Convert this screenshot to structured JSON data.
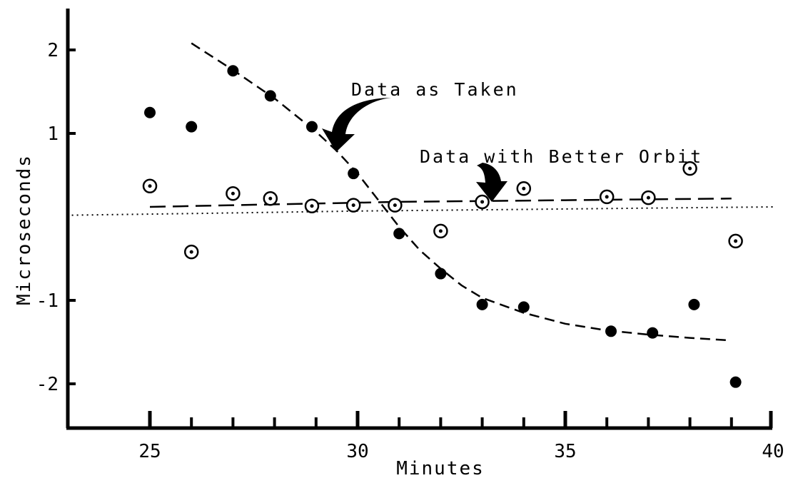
{
  "chart_data": {
    "type": "scatter",
    "xlabel": "Minutes",
    "ylabel": "Microseconds",
    "xlim": [
      23,
      40
    ],
    "ylim": [
      -2.5,
      2.5
    ],
    "x_ticks": [
      25,
      30,
      35,
      40
    ],
    "x_tick_labels": [
      "25",
      "30",
      "35",
      "40"
    ],
    "y_ticks": [
      2,
      1,
      -1,
      -2
    ],
    "y_tick_labels": [
      "2",
      "1",
      "-1",
      "-2"
    ],
    "grid": false,
    "annotations": [
      {
        "text": "Data as Taken"
      },
      {
        "text": "Data with Better Orbit"
      }
    ],
    "series": [
      {
        "marker": "filled-circle",
        "points": [
          [
            25,
            1.25
          ],
          [
            26,
            1.08
          ],
          [
            27,
            1.75
          ],
          [
            27.9,
            1.45
          ],
          [
            28.9,
            1.08
          ],
          [
            29.9,
            0.52
          ],
          [
            31,
            -0.2
          ],
          [
            32,
            -0.68
          ],
          [
            33,
            -1.05
          ],
          [
            34,
            -1.08
          ],
          [
            36.1,
            -1.37
          ],
          [
            37.1,
            -1.39
          ],
          [
            38.1,
            -1.05
          ],
          [
            39.1,
            -1.98
          ]
        ]
      },
      {
        "marker": "circle-dot",
        "points": [
          [
            25,
            0.37
          ],
          [
            26,
            -0.42
          ],
          [
            27,
            0.28
          ],
          [
            27.9,
            0.22
          ],
          [
            28.9,
            0.13
          ],
          [
            29.9,
            0.14
          ],
          [
            30.9,
            0.14
          ],
          [
            32,
            -0.17
          ],
          [
            33,
            0.18
          ],
          [
            34,
            0.34
          ],
          [
            36,
            0.24
          ],
          [
            37,
            0.23
          ],
          [
            38,
            0.58
          ],
          [
            39.1,
            -0.29
          ]
        ]
      }
    ],
    "curves": [
      {
        "style": "dashed",
        "points": [
          [
            26,
            2.08
          ],
          [
            27,
            1.76
          ],
          [
            28,
            1.42
          ],
          [
            29,
            1.02
          ],
          [
            29.5,
            0.79
          ],
          [
            30,
            0.52
          ],
          [
            30.5,
            0.2
          ],
          [
            31,
            -0.12
          ],
          [
            31.5,
            -0.4
          ],
          [
            32,
            -0.62
          ],
          [
            32.5,
            -0.82
          ],
          [
            33,
            -0.97
          ],
          [
            34,
            -1.15
          ],
          [
            35,
            -1.28
          ],
          [
            36,
            -1.36
          ],
          [
            37,
            -1.41
          ],
          [
            38,
            -1.45
          ],
          [
            39,
            -1.48
          ]
        ]
      },
      {
        "style": "long-dash",
        "points": [
          [
            25,
            0.12
          ],
          [
            27,
            0.14
          ],
          [
            29,
            0.16
          ],
          [
            31,
            0.18
          ],
          [
            33,
            0.19
          ],
          [
            35,
            0.2
          ],
          [
            37,
            0.21
          ],
          [
            39,
            0.22
          ]
        ]
      },
      {
        "style": "dotted",
        "points": [
          [
            23,
            0.02
          ],
          [
            26,
            0.04
          ],
          [
            30,
            0.07
          ],
          [
            34,
            0.09
          ],
          [
            38,
            0.11
          ],
          [
            40,
            0.12
          ]
        ]
      }
    ]
  }
}
